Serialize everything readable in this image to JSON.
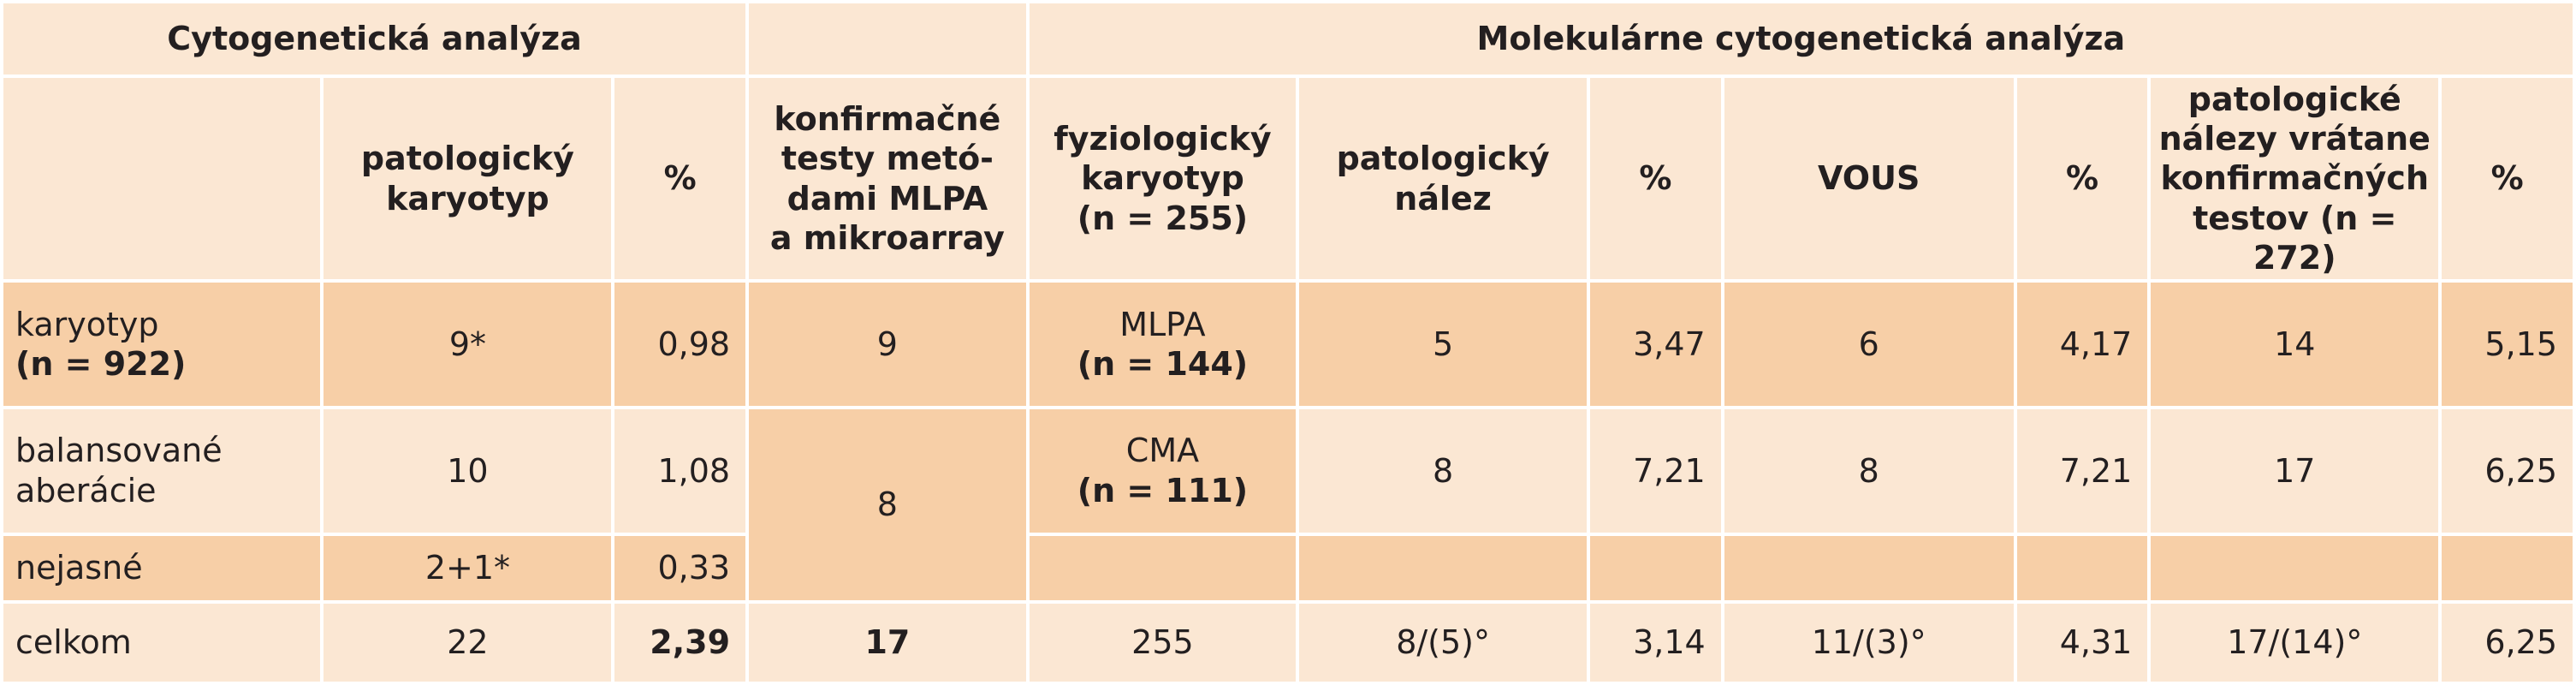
{
  "header": {
    "group_left": "Cytogenetická analýza",
    "group_right": "Molekulárne cytogenetická analýza"
  },
  "columns": {
    "pathological_karyotype": [
      "patologický",
      "karyotyp"
    ],
    "percent": "%",
    "confirmatory": [
      "konfirmačné",
      "testy metó-",
      "dami MLPA",
      "a mikroarray"
    ],
    "physiological_karyotype": [
      "fyziologický",
      "karyotyp",
      "(n = 255)"
    ],
    "pathological_finding": [
      "patologický",
      "nález"
    ],
    "vous": "VOUS",
    "pathological_incl": [
      "patologické",
      "nálezy vrátane",
      "konfirmačných",
      "testov (n = 272)"
    ]
  },
  "rows": {
    "karyotyp": {
      "label": "karyotyp",
      "label_n": "(n = 922)",
      "patol": "9*",
      "pct": "0,98",
      "confirm": "9",
      "method": "MLPA",
      "method_n": "(n = 144)",
      "finding": "5",
      "finding_pct": "3,47",
      "vous": "6",
      "vous_pct": "4,17",
      "total": "14",
      "total_pct": "5,15"
    },
    "balanced": {
      "label": [
        "balansované",
        "aberácie"
      ],
      "patol": "10",
      "pct": "1,08",
      "confirm": "8",
      "method": "CMA",
      "method_n": "(n = 111)",
      "finding": "8",
      "finding_pct": "7,21",
      "vous": "8",
      "vous_pct": "7,21",
      "total": "17",
      "total_pct": "6,25"
    },
    "unclear": {
      "label": "nejasné",
      "patol": "2+1*",
      "pct": "0,33"
    },
    "total": {
      "label": "celkom",
      "patol": "22",
      "pct": "2,39",
      "confirm": "17",
      "method": "255",
      "finding": "8/(5)°",
      "finding_pct": "3,14",
      "vous": "11/(3)°",
      "vous_pct": "4,31",
      "total": "17/(14)°",
      "total_pct": "6,25"
    }
  },
  "colors": {
    "light_fill": "#fbe7d3",
    "dark_fill": "#f7cfa7",
    "text": "#231f20"
  }
}
